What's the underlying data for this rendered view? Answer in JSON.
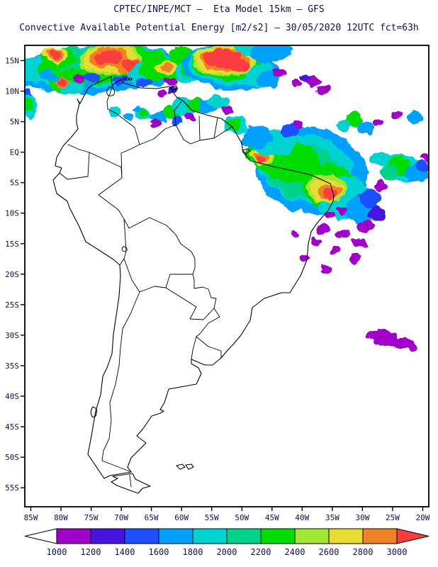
{
  "header": {
    "title_line1": "CPTEC/INPE/MCT –  Eta Model 15km – GFS",
    "title_line2": "Convective Available Potential Energy [m2/s2] – 30/05/2020 12UTC fct=63h"
  },
  "colors": {
    "text": "#10104f",
    "map_line": "#000000",
    "background": "#ffffff"
  },
  "axes": {
    "lat_ticks": [
      {
        "label": "15N",
        "lat": 15
      },
      {
        "label": "10N",
        "lat": 10
      },
      {
        "label": "5N",
        "lat": 5
      },
      {
        "label": "EQ",
        "lat": 0
      },
      {
        "label": "5S",
        "lat": -5
      },
      {
        "label": "10S",
        "lat": -10
      },
      {
        "label": "15S",
        "lat": -15
      },
      {
        "label": "20S",
        "lat": -20
      },
      {
        "label": "25S",
        "lat": -25
      },
      {
        "label": "30S",
        "lat": -30
      },
      {
        "label": "35S",
        "lat": -35
      },
      {
        "label": "40S",
        "lat": -40
      },
      {
        "label": "45S",
        "lat": -45
      },
      {
        "label": "50S",
        "lat": -50
      },
      {
        "label": "55S",
        "lat": -55
      }
    ],
    "lon_ticks": [
      {
        "label": "85W",
        "lon": -85
      },
      {
        "label": "80W",
        "lon": -80
      },
      {
        "label": "75W",
        "lon": -75
      },
      {
        "label": "70W",
        "lon": -70
      },
      {
        "label": "65W",
        "lon": -65
      },
      {
        "label": "60W",
        "lon": -60
      },
      {
        "label": "55W",
        "lon": -55
      },
      {
        "label": "50W",
        "lon": -50
      },
      {
        "label": "45W",
        "lon": -45
      },
      {
        "label": "40W",
        "lon": -40
      },
      {
        "label": "35W",
        "lon": -35
      },
      {
        "label": "30W",
        "lon": -30
      },
      {
        "label": "25W",
        "lon": -25
      },
      {
        "label": "20W",
        "lon": -20
      }
    ]
  },
  "colorbar": {
    "tick_labels": [
      "1000",
      "1200",
      "1400",
      "1600",
      "1800",
      "2000",
      "2200",
      "2400",
      "2600",
      "2800",
      "3000"
    ],
    "below_min_color": "#ffffff",
    "above_max_color": "#fa3c3c",
    "segment_colors": [
      "#a000c8",
      "#4614dc",
      "#1e50ff",
      "#00a0ff",
      "#00d2d2",
      "#00d28c",
      "#00dc00",
      "#a0e632",
      "#e6dc32",
      "#f08228"
    ]
  },
  "chart_data": {
    "type": "heatmap",
    "title": "Convective Available Potential Energy [m2/s2]",
    "source_model_line": "CPTEC/INPE/MCT –  Eta Model 15km – GFS",
    "valid_line": "30/05/2020 12UTC fct=63h",
    "units": "m2/s2",
    "lon_range_deg_west": [
      86,
      19
    ],
    "lat_range_deg": [
      -58,
      17.5
    ],
    "scale_values": [
      1000,
      1200,
      1400,
      1600,
      1800,
      2000,
      2200,
      2400,
      2600,
      2800,
      3000
    ],
    "value_bands": [
      "<1000",
      "1000-1200",
      "1200-1400",
      "1400-1600",
      "1600-1800",
      "1800-2000",
      "2000-2200",
      "2200-2400",
      "2400-2600",
      "2600-2800",
      "2800-3000",
      ">3000"
    ],
    "cape_region_format": [
      "lon_deg",
      "lat_deg",
      "rx_deg",
      "ry_deg",
      "rotation_deg",
      "band_index"
    ],
    "cape_regions": [
      [
        -74,
        13.6,
        13.5,
        3.9,
        -4,
        4
      ],
      [
        -74,
        14,
        12.5,
        3.4,
        -4,
        5
      ],
      [
        -73,
        14.3,
        11,
        2.9,
        -4,
        7
      ],
      [
        -59,
        14,
        4,
        2.5,
        0,
        5
      ],
      [
        -59,
        14.8,
        3,
        2,
        0,
        7
      ],
      [
        -79,
        15.2,
        4,
        2,
        0,
        6
      ],
      [
        -80.5,
        15.4,
        3,
        1.8,
        0,
        7
      ],
      [
        -81,
        16,
        2.2,
        1.3,
        0,
        9
      ],
      [
        -81,
        16.1,
        1.5,
        1,
        0,
        10
      ],
      [
        -81.1,
        16.2,
        1,
        0.7,
        0,
        11
      ],
      [
        -72,
        15.2,
        5.2,
        2.5,
        -5,
        8
      ],
      [
        -72,
        15.3,
        4.6,
        2.2,
        -5,
        9
      ],
      [
        -72,
        15.4,
        3.4,
        1.7,
        -5,
        10
      ],
      [
        -72,
        15.5,
        2.4,
        1.2,
        -5,
        11
      ],
      [
        -68.5,
        14.1,
        1.8,
        1.2,
        0,
        10
      ],
      [
        -68.5,
        14.2,
        1.2,
        0.9,
        0,
        11
      ],
      [
        -66,
        12.8,
        3,
        2,
        0,
        5
      ],
      [
        -64,
        12.2,
        2.2,
        1.5,
        0,
        4
      ],
      [
        -63.5,
        13.5,
        3.5,
        2,
        0,
        7
      ],
      [
        -62.5,
        13.8,
        1.8,
        1.2,
        0,
        9
      ],
      [
        -62.3,
        13.9,
        1,
        0.8,
        0,
        10
      ],
      [
        -70,
        11.8,
        1.5,
        0.8,
        0,
        3
      ],
      [
        -75,
        12.2,
        1.3,
        0.7,
        0,
        3
      ],
      [
        -66.2,
        11.5,
        1.2,
        0.7,
        0,
        3
      ],
      [
        -77,
        12.1,
        0.9,
        0.6,
        0,
        1
      ],
      [
        -62,
        11.6,
        0.8,
        0.6,
        0,
        1
      ],
      [
        -60,
        16.2,
        2,
        1.1,
        0,
        7
      ],
      [
        -57,
        16,
        1.6,
        1,
        0,
        5
      ],
      [
        -58,
        13.2,
        3,
        2,
        0,
        5
      ],
      [
        -58.2,
        13.6,
        2,
        1.4,
        0,
        7
      ],
      [
        -52,
        13.8,
        8,
        3.7,
        5,
        4
      ],
      [
        -52,
        14.2,
        7,
        3.1,
        5,
        5
      ],
      [
        -52.5,
        14.6,
        6,
        2.7,
        5,
        7
      ],
      [
        -53,
        14.9,
        5.3,
        2.4,
        4,
        8
      ],
      [
        -53,
        15,
        4.8,
        2.2,
        4,
        9
      ],
      [
        -53,
        15.1,
        4,
        1.8,
        4,
        10
      ],
      [
        -53.2,
        15.3,
        3.2,
        1.5,
        4,
        11
      ],
      [
        -50.5,
        14.2,
        1.5,
        1,
        0,
        11
      ],
      [
        -48,
        16.8,
        3,
        1.2,
        0,
        5
      ],
      [
        -45,
        16.5,
        3.5,
        1.5,
        0,
        4
      ],
      [
        -47,
        15.8,
        1.6,
        1,
        0,
        4
      ],
      [
        -47,
        12.5,
        2.5,
        1.8,
        0,
        5
      ],
      [
        -45.5,
        12,
        1.8,
        1.3,
        0,
        4
      ],
      [
        -44,
        12.9,
        1,
        0.7,
        0,
        1
      ],
      [
        -38.4,
        11.6,
        1.4,
        1,
        0,
        1
      ],
      [
        -36.5,
        10.2,
        0.9,
        0.7,
        0,
        1
      ],
      [
        -41,
        11.2,
        0.8,
        0.6,
        0,
        1
      ],
      [
        -39.5,
        12.2,
        0.8,
        0.6,
        0,
        2
      ],
      [
        -66.5,
        6.3,
        1.6,
        1.2,
        0,
        5
      ],
      [
        -66.3,
        6.5,
        1,
        0.8,
        0,
        7
      ],
      [
        -63.8,
        5.6,
        1.4,
        1,
        0,
        4
      ],
      [
        -61.5,
        6.5,
        1.6,
        1.1,
        0,
        7
      ],
      [
        -59.5,
        7.3,
        2,
        1.4,
        0,
        5
      ],
      [
        -60.8,
        5.2,
        1,
        0.8,
        0,
        3
      ],
      [
        -64.5,
        4.6,
        0.8,
        0.6,
        0,
        1
      ],
      [
        -58.5,
        5.8,
        0.7,
        0.5,
        0,
        1
      ],
      [
        -57.5,
        7.8,
        1.4,
        1,
        0,
        7
      ],
      [
        -55.5,
        7.6,
        1.6,
        1.1,
        0,
        4
      ],
      [
        -54,
        8.2,
        1.8,
        1.2,
        0,
        5
      ],
      [
        -52.5,
        6.8,
        0.9,
        0.7,
        0,
        1
      ],
      [
        -61.5,
        10.3,
        0.8,
        0.6,
        0,
        2
      ],
      [
        -63,
        9.8,
        0.7,
        0.5,
        0,
        1
      ],
      [
        -71,
        6.5,
        1,
        0.7,
        0,
        5
      ],
      [
        -69,
        5.8,
        0.8,
        0.6,
        0,
        4
      ],
      [
        -67.5,
        7.2,
        0.9,
        0.6,
        0,
        4
      ],
      [
        -79.6,
        11.2,
        2.4,
        1.6,
        0,
        7
      ],
      [
        -78.5,
        10.5,
        1.8,
        1.3,
        0,
        5
      ],
      [
        -79.9,
        11.4,
        1.2,
        0.9,
        0,
        10
      ],
      [
        -80,
        11.5,
        0.8,
        0.6,
        0,
        11
      ],
      [
        -82,
        12.5,
        1.5,
        1,
        0,
        4
      ],
      [
        -85.3,
        13.5,
        1.5,
        2,
        0,
        5
      ],
      [
        -85.5,
        9,
        1,
        1.5,
        0,
        3
      ],
      [
        -85.2,
        7.5,
        1.2,
        1.8,
        0,
        5
      ],
      [
        -85.4,
        7.8,
        0.7,
        0.9,
        0,
        7
      ],
      [
        -75.5,
        10.7,
        1,
        0.8,
        0,
        4
      ],
      [
        -38.5,
        -3,
        9.5,
        7,
        15,
        4
      ],
      [
        -39.5,
        -2.5,
        8,
        5.5,
        15,
        5
      ],
      [
        -40,
        -3,
        6.5,
        4.5,
        12,
        6
      ],
      [
        -42,
        -1.5,
        5,
        3.5,
        10,
        7
      ],
      [
        -35.5,
        -5.5,
        4.5,
        3.5,
        0,
        7
      ],
      [
        -33,
        -7.5,
        4.5,
        3.5,
        0,
        5
      ],
      [
        -30,
        -9.5,
        3,
        2.2,
        0,
        4
      ],
      [
        -28.5,
        -7.5,
        2,
        1.5,
        0,
        3
      ],
      [
        -27.5,
        -10,
        1.5,
        1.1,
        0,
        2
      ],
      [
        -36,
        -6,
        3.2,
        2.3,
        0,
        8
      ],
      [
        -36,
        -6.3,
        2.6,
        1.9,
        0,
        9
      ],
      [
        -35.6,
        -6.6,
        1.8,
        1.3,
        0,
        10
      ],
      [
        -35.3,
        -6.9,
        1.2,
        0.9,
        0,
        11
      ],
      [
        -46.5,
        -0.5,
        3,
        2.2,
        0,
        7
      ],
      [
        -46.6,
        -0.7,
        2.2,
        1.6,
        0,
        8
      ],
      [
        -46.8,
        -0.8,
        1.8,
        1.3,
        0,
        9
      ],
      [
        -47,
        -1,
        1.2,
        0.9,
        0,
        10
      ],
      [
        -47.1,
        -1.2,
        0.8,
        0.6,
        0,
        11
      ],
      [
        -44.5,
        1.5,
        3.5,
        2.2,
        0,
        5
      ],
      [
        -47.5,
        2.5,
        2.5,
        1.8,
        0,
        4
      ],
      [
        -51,
        4.5,
        2,
        1.4,
        0,
        5
      ],
      [
        -51.3,
        4.7,
        1.2,
        0.9,
        0,
        7
      ],
      [
        -42,
        3.5,
        1.6,
        1.2,
        0,
        3
      ],
      [
        -40.5,
        4.6,
        0.9,
        0.7,
        0,
        1
      ],
      [
        -29.5,
        -12.2,
        1.6,
        1,
        0,
        1
      ],
      [
        -33,
        -13.5,
        1.3,
        0.9,
        0,
        1
      ],
      [
        -36.5,
        -12.8,
        1,
        0.7,
        0,
        1
      ],
      [
        -26.8,
        -5.5,
        0.9,
        0.7,
        0,
        1
      ],
      [
        -30.5,
        -14.8,
        1,
        0.7,
        0,
        1
      ],
      [
        -34.8,
        -16,
        0.9,
        0.6,
        0,
        1
      ],
      [
        -31,
        -17.5,
        0.8,
        0.6,
        0,
        1
      ],
      [
        -23.5,
        -2.5,
        3.2,
        2.2,
        10,
        5
      ],
      [
        -24,
        -2.2,
        2,
        1.4,
        0,
        7
      ],
      [
        -21,
        -3.5,
        2,
        1.5,
        0,
        4
      ],
      [
        -19.8,
        -2.5,
        1.4,
        1,
        0,
        3
      ],
      [
        -19.5,
        -0.8,
        0.9,
        0.7,
        0,
        1
      ],
      [
        -25.5,
        -3.5,
        1.5,
        1.1,
        0,
        6
      ],
      [
        -27,
        -1,
        1.6,
        1.1,
        0,
        5
      ],
      [
        -31.5,
        5.2,
        1.6,
        1.1,
        0,
        7
      ],
      [
        -33,
        4.5,
        1.2,
        0.9,
        0,
        5
      ],
      [
        -29.5,
        4,
        1.4,
        1,
        0,
        4
      ],
      [
        -27.5,
        4.8,
        0.8,
        0.6,
        0,
        1
      ],
      [
        -24.5,
        6,
        0.9,
        0.7,
        0,
        1
      ],
      [
        -21.5,
        5.8,
        1.2,
        0.8,
        0,
        4
      ],
      [
        -26.5,
        -30.3,
        2.6,
        1.2,
        8,
        1
      ],
      [
        -23.3,
        -31.3,
        2.2,
        1,
        8,
        1
      ],
      [
        -21.5,
        -32,
        0.8,
        0.5,
        0,
        1
      ],
      [
        -33.5,
        -9.5,
        0.9,
        0.6,
        0,
        1
      ],
      [
        -35.5,
        -10.5,
        0.8,
        0.5,
        0,
        1
      ],
      [
        -37.5,
        -14.5,
        0.9,
        0.6,
        0,
        1
      ],
      [
        -39.5,
        -17.5,
        0.8,
        0.6,
        0,
        1
      ],
      [
        -36,
        -19,
        0.9,
        0.6,
        0,
        1
      ],
      [
        -41,
        -13.5,
        0.7,
        0.5,
        0,
        1
      ]
    ]
  }
}
